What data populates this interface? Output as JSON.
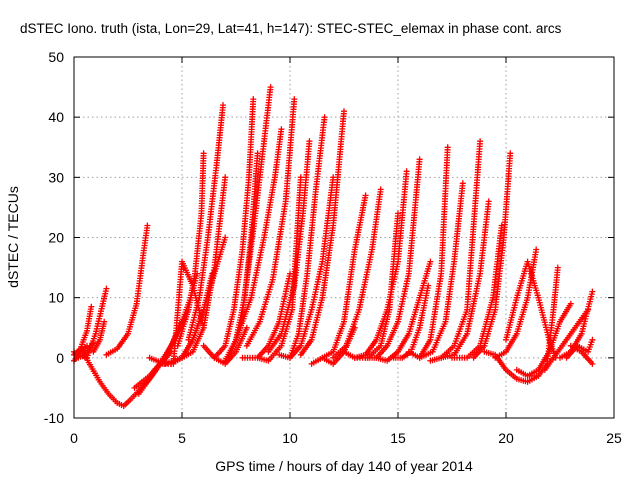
{
  "chart_data": {
    "type": "scatter",
    "title": "dSTEC Iono. truth (ista, Lon=29, Lat=41, h=147): STEC-STEC_elemax in phase cont. arcs",
    "xlabel": "GPS time / hours of day 140 of year 2014",
    "ylabel": "dSTEC  / TECUs",
    "xlim": [
      0,
      25
    ],
    "ylim": [
      -10,
      50
    ],
    "xticks": [
      0,
      5,
      10,
      15,
      20,
      25
    ],
    "yticks": [
      -10,
      0,
      10,
      20,
      30,
      40,
      50
    ],
    "grid": true,
    "legend": "none",
    "marker": "plus",
    "color": "#ff0000",
    "series": [
      {
        "x": [
          0.0,
          0.3,
          0.6,
          0.8
        ],
        "y": [
          0.5,
          1.5,
          4.5,
          8.5
        ]
      },
      {
        "x": [
          0.0,
          0.2,
          0.5,
          0.9
        ],
        "y": [
          1.0,
          0.0,
          0.5,
          2.5
        ]
      },
      {
        "x": [
          0.0,
          0.3,
          0.6
        ],
        "y": [
          -0.5,
          1.0,
          2.0
        ]
      },
      {
        "x": [
          0.2,
          0.6,
          1.0,
          1.5
        ],
        "y": [
          0.5,
          0.0,
          4.0,
          11.5
        ]
      },
      {
        "x": [
          0.4,
          0.8,
          1.2,
          1.6,
          2.0,
          2.3,
          2.6,
          3.0,
          3.5,
          4.0,
          4.5
        ],
        "y": [
          1.0,
          -1.5,
          -4.0,
          -6.0,
          -7.5,
          -8.0,
          -7.0,
          -5.5,
          -3.5,
          -1.0,
          1.0
        ]
      },
      {
        "x": [
          0.9,
          1.2,
          1.4
        ],
        "y": [
          1.0,
          3.0,
          6.0
        ]
      },
      {
        "x": [
          1.5,
          2.0,
          2.5,
          2.9,
          3.2,
          3.4
        ],
        "y": [
          0.5,
          1.5,
          4.0,
          9.0,
          17.0,
          22.0
        ]
      },
      {
        "x": [
          2.8,
          3.5,
          4.2,
          4.8,
          5.3
        ],
        "y": [
          -5.0,
          -3.0,
          0.0,
          4.0,
          8.0
        ]
      },
      {
        "x": [
          3.0,
          3.8,
          4.5,
          5.0,
          5.4,
          5.7
        ],
        "y": [
          -6.0,
          -2.0,
          2.0,
          6.0,
          10.0,
          14.0
        ]
      },
      {
        "x": [
          4.0,
          4.6,
          5.0,
          5.5,
          6.0
        ],
        "y": [
          -1.0,
          -1.0,
          16.0,
          12.0,
          5.0
        ]
      },
      {
        "x": [
          3.5,
          4.2,
          5.0,
          5.5,
          6.0,
          6.4
        ],
        "y": [
          0.0,
          -1.0,
          0.0,
          3.0,
          8.0,
          14.0
        ]
      },
      {
        "x": [
          4.5,
          5.0,
          5.5,
          6.0,
          6.5,
          7.0
        ],
        "y": [
          -1.0,
          0.0,
          3.0,
          8.0,
          14.0,
          20.0
        ]
      },
      {
        "x": [
          4.8,
          5.3,
          5.6,
          5.9,
          6.0
        ],
        "y": [
          2.0,
          8.0,
          14.0,
          24.0,
          34.0
        ]
      },
      {
        "x": [
          5.0,
          5.5,
          6.0,
          6.5,
          6.8,
          7.0
        ],
        "y": [
          0.0,
          1.0,
          5.0,
          15.0,
          24.0,
          30.0
        ]
      },
      {
        "x": [
          5.3,
          5.8,
          6.2,
          6.6,
          6.9
        ],
        "y": [
          3.0,
          10.0,
          20.0,
          32.0,
          42.0
        ]
      },
      {
        "x": [
          6.0,
          6.5,
          7.0,
          7.5,
          8.0
        ],
        "y": [
          2.0,
          0.0,
          -1.0,
          1.0,
          5.0
        ]
      },
      {
        "x": [
          6.5,
          7.0,
          7.4,
          7.8,
          8.1,
          8.3
        ],
        "y": [
          0.0,
          2.0,
          8.0,
          18.0,
          30.0,
          43.0
        ]
      },
      {
        "x": [
          7.0,
          7.5,
          7.9,
          8.2,
          8.5
        ],
        "y": [
          -0.5,
          3.0,
          10.0,
          20.0,
          34.0
        ]
      },
      {
        "x": [
          7.2,
          7.7,
          8.0,
          8.4,
          8.8,
          9.1
        ],
        "y": [
          0.0,
          5.0,
          13.0,
          24.0,
          36.0,
          45.0
        ]
      },
      {
        "x": [
          7.5,
          8.2,
          8.8,
          9.3,
          9.6
        ],
        "y": [
          3.0,
          10.0,
          20.0,
          30.0,
          38.0
        ]
      },
      {
        "x": [
          7.8,
          8.5,
          9.0,
          9.5,
          10.0
        ],
        "y": [
          0.0,
          0.0,
          2.0,
          6.0,
          14.0
        ]
      },
      {
        "x": [
          8.0,
          8.6,
          9.2,
          9.8,
          10.2
        ],
        "y": [
          2.0,
          6.0,
          13.0,
          26.0,
          43.0
        ]
      },
      {
        "x": [
          8.5,
          9.0,
          9.6,
          10.1,
          10.5
        ],
        "y": [
          0.0,
          -0.5,
          2.0,
          8.0,
          30.0
        ]
      },
      {
        "x": [
          9.0,
          9.6,
          10.2,
          10.6,
          10.9
        ],
        "y": [
          1.0,
          4.0,
          12.0,
          24.0,
          36.0
        ]
      },
      {
        "x": [
          9.5,
          10.0,
          10.4,
          10.8,
          11.2,
          11.6
        ],
        "y": [
          0.5,
          0.0,
          4.0,
          14.0,
          28.0,
          40.0
        ]
      },
      {
        "x": [
          10.0,
          10.5,
          11.0,
          11.5,
          12.0
        ],
        "y": [
          0.0,
          2.0,
          8.0,
          16.0,
          30.0
        ]
      },
      {
        "x": [
          10.5,
          11.0,
          11.5,
          12.0,
          12.5
        ],
        "y": [
          0.5,
          3.0,
          10.0,
          22.0,
          41.0
        ]
      },
      {
        "x": [
          11.0,
          11.5,
          12.0,
          12.5,
          13.0
        ],
        "y": [
          -1.0,
          0.0,
          -1.0,
          1.0,
          5.0
        ]
      },
      {
        "x": [
          11.5,
          12.0,
          12.5,
          13.0,
          13.5
        ],
        "y": [
          0.0,
          1.0,
          6.0,
          18.0,
          27.0
        ]
      },
      {
        "x": [
          12.0,
          12.6,
          13.2,
          13.8,
          14.2
        ],
        "y": [
          0.0,
          2.0,
          8.0,
          18.0,
          28.0
        ]
      },
      {
        "x": [
          12.5,
          13.0,
          13.6,
          14.2,
          14.6,
          15.0
        ],
        "y": [
          1.0,
          0.0,
          0.0,
          2.0,
          8.0,
          24.0
        ]
      },
      {
        "x": [
          13.0,
          13.5,
          14.0,
          14.5,
          15.0,
          15.4
        ],
        "y": [
          0.0,
          0.5,
          3.0,
          8.0,
          16.0,
          31.0
        ]
      },
      {
        "x": [
          13.5,
          14.0,
          14.5,
          15.0,
          15.5,
          16.0
        ],
        "y": [
          0.0,
          0.0,
          2.0,
          6.0,
          14.0,
          33.0
        ]
      },
      {
        "x": [
          14.0,
          14.5,
          15.0,
          15.5,
          16.0,
          16.5
        ],
        "y": [
          0.0,
          -0.5,
          1.0,
          4.0,
          10.0,
          16.0
        ]
      },
      {
        "x": [
          14.8,
          15.2,
          15.6,
          16.0,
          16.4
        ],
        "y": [
          0.0,
          0.0,
          1.0,
          5.0,
          12.0
        ]
      },
      {
        "x": [
          15.5,
          16.0,
          16.5,
          17.0,
          17.3
        ],
        "y": [
          1.0,
          0.0,
          3.0,
          14.0,
          35.0
        ]
      },
      {
        "x": [
          16.0,
          16.6,
          17.2,
          17.6,
          18.0
        ],
        "y": [
          0.0,
          1.0,
          6.0,
          16.0,
          29.0
        ]
      },
      {
        "x": [
          16.5,
          17.0,
          17.6,
          18.2,
          18.8
        ],
        "y": [
          -0.5,
          0.0,
          2.0,
          8.0,
          36.0
        ]
      },
      {
        "x": [
          17.0,
          17.6,
          18.2,
          18.8,
          19.2
        ],
        "y": [
          0.0,
          0.5,
          4.0,
          14.0,
          26.0
        ]
      },
      {
        "x": [
          17.5,
          18.2,
          18.8,
          19.4,
          19.8
        ],
        "y": [
          0.0,
          0.0,
          2.0,
          10.0,
          22.0
        ]
      },
      {
        "x": [
          18.5,
          19.0,
          19.5,
          19.9,
          20.2
        ],
        "y": [
          0.0,
          2.0,
          8.0,
          20.0,
          34.0
        ]
      },
      {
        "x": [
          19.0,
          19.5,
          20.0,
          20.5,
          21.0,
          21.5
        ],
        "y": [
          1.0,
          0.5,
          -2.0,
          -3.5,
          -4.0,
          -3.0
        ]
      },
      {
        "x": [
          19.5,
          20.0,
          20.5,
          21.0,
          21.4
        ],
        "y": [
          0.0,
          1.0,
          4.0,
          10.0,
          18.0
        ]
      },
      {
        "x": [
          20.0,
          20.5,
          21.0,
          21.5,
          22.0,
          22.3
        ],
        "y": [
          3.0,
          10.0,
          16.0,
          10.0,
          3.0,
          0.0
        ]
      },
      {
        "x": [
          20.5,
          21.0,
          21.5,
          22.0,
          22.5,
          23.0
        ],
        "y": [
          -2.0,
          -3.0,
          -2.0,
          1.0,
          6.0,
          9.0
        ]
      },
      {
        "x": [
          21.0,
          21.5,
          21.9,
          22.2,
          22.4
        ],
        "y": [
          -3.0,
          -3.0,
          -1.0,
          8.0,
          15.0
        ]
      },
      {
        "x": [
          21.8,
          22.2,
          22.6,
          23.0,
          23.4,
          23.8
        ],
        "y": [
          -2.0,
          0.0,
          2.0,
          4.0,
          6.0,
          8.0
        ]
      },
      {
        "x": [
          22.5,
          23.0,
          23.5,
          24.0
        ],
        "y": [
          0.0,
          1.0,
          4.0,
          11.0
        ]
      },
      {
        "x": [
          22.8,
          23.3,
          23.8,
          24.0
        ],
        "y": [
          0.0,
          2.0,
          1.0,
          3.0
        ]
      },
      {
        "x": [
          23.0,
          23.5,
          24.0
        ],
        "y": [
          2.0,
          1.0,
          -1.0
        ]
      }
    ]
  }
}
